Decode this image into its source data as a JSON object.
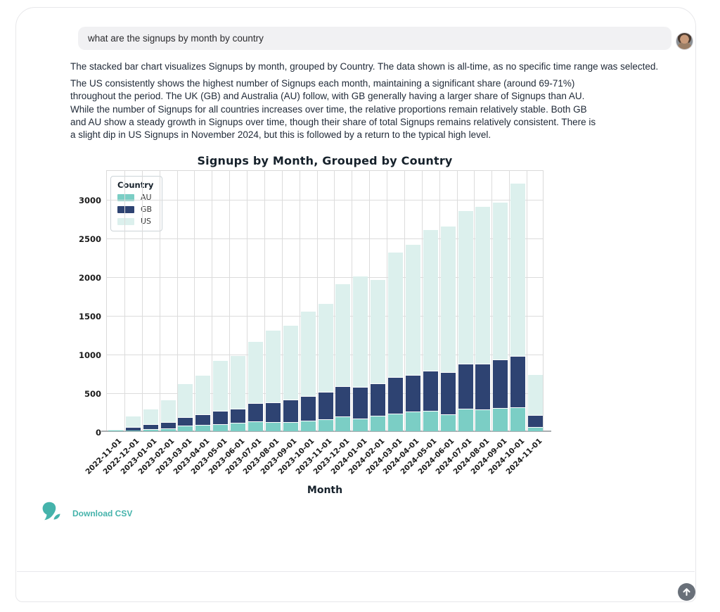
{
  "question": {
    "text": "what are the signups by month by country"
  },
  "answer": {
    "paragraph1": "The stacked bar chart visualizes Signups by month, grouped by Country. The data shown is all-time, as no specific time range was selected.",
    "paragraph2": "The US consistently shows the highest number of Signups each month, maintaining a significant share (around 69-71%) throughout the period. The UK (GB) and Australia (AU) follow, with GB generally having a larger share of Signups than AU. While the number of Signups for all countries increases over time, the relative proportions remain relatively stable. Both GB and AU show a steady growth in Signups over time, though their share of total Signups remains relatively consistent. There is a slight dip in US Signups in November 2024, but this is followed by a return to the typical high level."
  },
  "chart_data": {
    "type": "bar",
    "stacked": true,
    "title": "Signups by Month, Grouped by Country",
    "xlabel": "Month",
    "ylabel": "",
    "legend_title": "Country",
    "legend_position": "upper-left",
    "grid": true,
    "ylim": [
      0,
      3380
    ],
    "yticks": [
      0,
      500,
      1000,
      1500,
      2000,
      2500,
      3000
    ],
    "categories": [
      "2022-11-01",
      "2022-12-01",
      "2023-01-01",
      "2023-02-01",
      "2023-03-01",
      "2023-04-01",
      "2023-05-01",
      "2023-06-01",
      "2023-07-01",
      "2023-08-01",
      "2023-09-01",
      "2023-10-01",
      "2023-11-01",
      "2023-12-01",
      "2024-01-01",
      "2024-02-01",
      "2024-03-01",
      "2024-04-01",
      "2024-05-01",
      "2024-06-01",
      "2024-07-01",
      "2024-08-01",
      "2024-09-01",
      "2024-10-01",
      "2024-11-01"
    ],
    "series": [
      {
        "name": "AU",
        "color": "#7bcec5",
        "values": [
          5,
          12,
          30,
          40,
          70,
          80,
          95,
          105,
          130,
          115,
          120,
          140,
          150,
          190,
          165,
          200,
          230,
          250,
          265,
          215,
          295,
          285,
          300,
          305,
          55
        ]
      },
      {
        "name": "GB",
        "color": "#2e4372",
        "values": [
          8,
          45,
          60,
          75,
          115,
          135,
          165,
          190,
          230,
          255,
          285,
          310,
          360,
          395,
          410,
          415,
          470,
          480,
          520,
          545,
          575,
          590,
          630,
          670,
          150
        ]
      },
      {
        "name": "US",
        "color": "#dcf0ed",
        "values": [
          15,
          140,
          205,
          290,
          430,
          510,
          655,
          685,
          805,
          940,
          970,
          1100,
          1140,
          1320,
          1435,
          1345,
          1615,
          1690,
          1825,
          1895,
          1980,
          2035,
          2035,
          2230,
          535
        ]
      }
    ]
  },
  "footer": {
    "download_label": "Download CSV",
    "brand_color": "#45b3ab"
  }
}
